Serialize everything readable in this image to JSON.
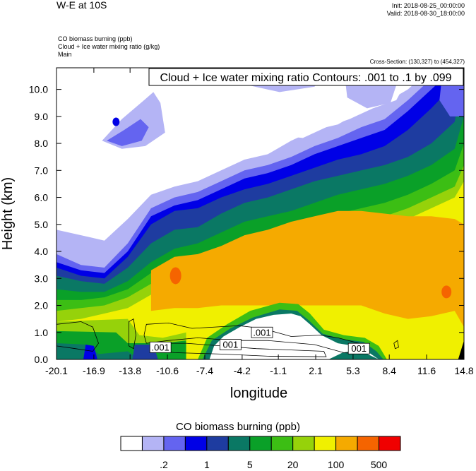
{
  "header": {
    "title": "W-E at 10S",
    "init": "Init: 2018-08-25_00:00:00",
    "valid": "Valid: 2018-08-30_18:00:00",
    "fields": [
      "CO biomass burning   (ppb)",
      "Cloud + Ice water mixing ratio   (g/kg)",
      "Main"
    ],
    "cross_section": "Cross-Section: (130,327) to (454,327)"
  },
  "chart_data": {
    "type": "heatmap",
    "title": "Cloud + Ice water mixing ratio Contours: .001 to .1 by .099",
    "xlabel": "longitude",
    "ylabel": "Height (km)",
    "x_ticks": [
      "-20.1",
      "-16.9",
      "-13.8",
      "-10.6",
      "-7.4",
      "-4.2",
      "-1.1",
      "2.1",
      "5.3",
      "8.4",
      "11.6",
      "14.8"
    ],
    "y_ticks": [
      "0.0",
      "1.0",
      "2.0",
      "3.0",
      "4.0",
      "5.0",
      "6.0",
      "7.0",
      "8.0",
      "9.0",
      "10.0"
    ],
    "xlim": [
      -20.1,
      14.8
    ],
    "ylim": [
      0.0,
      10.8
    ],
    "contour_labels": [
      {
        "text": ".001",
        "x": -11.2,
        "y": 0.45
      },
      {
        "text": "001",
        "x": -5.2,
        "y": 0.55
      },
      {
        "text": ".001",
        "x": -2.5,
        "y": 1.0
      },
      {
        "text": "001",
        "x": 5.8,
        "y": 0.4
      }
    ],
    "colorbar": {
      "title": "CO biomass burning  (ppb)",
      "colors": [
        "#ffffff",
        "#b4b4f5",
        "#6464f0",
        "#0000e6",
        "#1e3ca0",
        "#0a7864",
        "#0aa028",
        "#3cbe14",
        "#96d20a",
        "#f0f000",
        "#f5aa00",
        "#f56400",
        "#f00000"
      ],
      "tick_labels": [
        ".2",
        "1",
        "5",
        "20",
        "100",
        "500"
      ]
    },
    "grid": false
  }
}
